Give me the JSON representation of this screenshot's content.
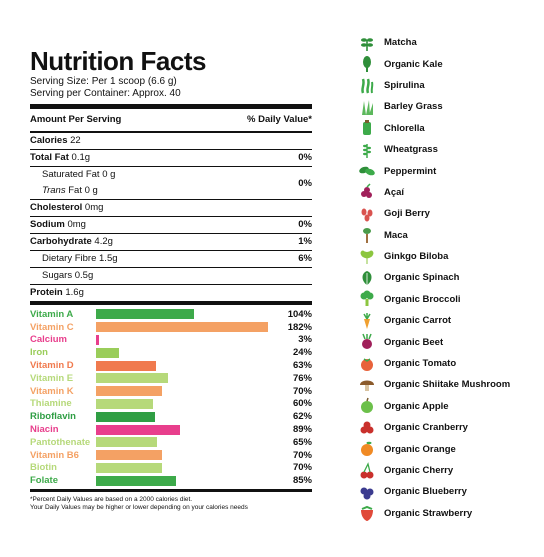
{
  "label": {
    "title": "Nutrition Facts",
    "serving_size": "Serving Size: Per 1 scoop (6.6 g)",
    "servings_per_container": "Serving per Container: Approx. 40",
    "col_amount": "Amount Per Serving",
    "col_dv": "% Daily Value*",
    "calories_label": "Calories",
    "calories_value": "22",
    "rows": {
      "total_fat": {
        "label": "Total Fat",
        "amount": "0.1g",
        "dv": "0%"
      },
      "saturated_fat": {
        "label": "Saturated Fat",
        "amount": "0 g"
      },
      "trans_fat": {
        "label_italic": "Trans",
        "label": "Fat",
        "amount": "0 g"
      },
      "fat_group_dv": "0%",
      "cholesterol": {
        "label": "Cholesterol",
        "amount": "0mg"
      },
      "sodium": {
        "label": "Sodium",
        "amount": "0mg",
        "dv": "0%"
      },
      "carbohydrate": {
        "label": "Carbohydrate",
        "amount": "4.2g",
        "dv": "1%"
      },
      "fibre": {
        "label": "Dietary Fibre",
        "amount": "1.5g",
        "dv": "6%"
      },
      "sugars": {
        "label": "Sugars",
        "amount": "0.5g"
      },
      "protein": {
        "label": "Protein",
        "amount": "1.6g"
      }
    },
    "vitamins": [
      {
        "name": "Vitamin A",
        "pct": "104%",
        "value": 104,
        "color": "#3daa4a"
      },
      {
        "name": "Vitamin C",
        "pct": "182%",
        "value": 182,
        "color": "#f4a164"
      },
      {
        "name": "Calcium",
        "pct": "3%",
        "value": 3,
        "color": "#e83e8c"
      },
      {
        "name": "Iron",
        "pct": "24%",
        "value": 24,
        "color": "#9acd5a"
      },
      {
        "name": "Vitamin D",
        "pct": "63%",
        "value": 63,
        "color": "#f07a4e"
      },
      {
        "name": "Vitamin E",
        "pct": "76%",
        "value": 76,
        "color": "#b6d97a"
      },
      {
        "name": "Vitamin K",
        "pct": "70%",
        "value": 70,
        "color": "#f4a164"
      },
      {
        "name": "Thiamine",
        "pct": "60%",
        "value": 60,
        "color": "#b6d97a"
      },
      {
        "name": "Riboflavin",
        "pct": "62%",
        "value": 62,
        "color": "#2f9e44"
      },
      {
        "name": "Niacin",
        "pct": "89%",
        "value": 89,
        "color": "#e83e8c"
      },
      {
        "name": "Pantothenate",
        "pct": "65%",
        "value": 65,
        "color": "#b6d97a"
      },
      {
        "name": "Vitamin B6",
        "pct": "70%",
        "value": 70,
        "color": "#f4a164"
      },
      {
        "name": "Biotin",
        "pct": "70%",
        "value": 70,
        "color": "#b6d97a"
      },
      {
        "name": "Folate",
        "pct": "85%",
        "value": 85,
        "color": "#3daa4a"
      }
    ],
    "footnote_1": "*Percent Daily Values are based on a 2000 calories diet.",
    "footnote_2": "Your Daily Values may be higher or lower depending on your calories needs"
  },
  "ingredients": [
    {
      "name": "Matcha",
      "icon": "leaf-sprig-icon",
      "color": "#2f8f3a"
    },
    {
      "name": "Organic Kale",
      "icon": "kale-icon",
      "color": "#2f8f3a"
    },
    {
      "name": "Spirulina",
      "icon": "seaweed-icon",
      "color": "#3daa4a"
    },
    {
      "name": "Barley Grass",
      "icon": "grass-icon",
      "color": "#5cb85c"
    },
    {
      "name": "Chlorella",
      "icon": "chlorella-icon",
      "color": "#3daa4a"
    },
    {
      "name": "Wheatgrass",
      "icon": "wheat-icon",
      "color": "#3daa4a"
    },
    {
      "name": "Peppermint",
      "icon": "mint-leaf-icon",
      "color": "#2f8f3a"
    },
    {
      "name": "Açaí",
      "icon": "acai-berry-icon",
      "color": "#a0205a"
    },
    {
      "name": "Goji Berry",
      "icon": "goji-berry-icon",
      "color": "#d9534f"
    },
    {
      "name": "Maca",
      "icon": "maca-root-icon",
      "color": "#4a9b4a"
    },
    {
      "name": "Ginkgo Biloba",
      "icon": "ginkgo-leaf-icon",
      "color": "#8cc63f"
    },
    {
      "name": "Organic Spinach",
      "icon": "spinach-icon",
      "color": "#2f8f3a"
    },
    {
      "name": "Organic Broccoli",
      "icon": "broccoli-icon",
      "color": "#3daa4a"
    },
    {
      "name": "Organic Carrot",
      "icon": "carrot-icon",
      "color": "#f0a030"
    },
    {
      "name": "Organic Beet",
      "icon": "beet-icon",
      "color": "#a0205a"
    },
    {
      "name": "Organic Tomato",
      "icon": "tomato-icon",
      "color": "#e8623a"
    },
    {
      "name": "Organic Shiitake Mushroom",
      "icon": "mushroom-icon",
      "color": "#8b5a2b"
    },
    {
      "name": "Organic Apple",
      "icon": "apple-icon",
      "color": "#6cc04a"
    },
    {
      "name": "Organic Cranberry",
      "icon": "cranberry-icon",
      "color": "#c9302c"
    },
    {
      "name": "Organic Orange",
      "icon": "orange-icon",
      "color": "#f08a24"
    },
    {
      "name": "Organic Cherry",
      "icon": "cherry-icon",
      "color": "#c9302c"
    },
    {
      "name": "Organic Blueberry",
      "icon": "blueberry-icon",
      "color": "#3b3b8f"
    },
    {
      "name": "Organic Strawberry",
      "icon": "strawberry-icon",
      "color": "#e04a3a"
    }
  ]
}
